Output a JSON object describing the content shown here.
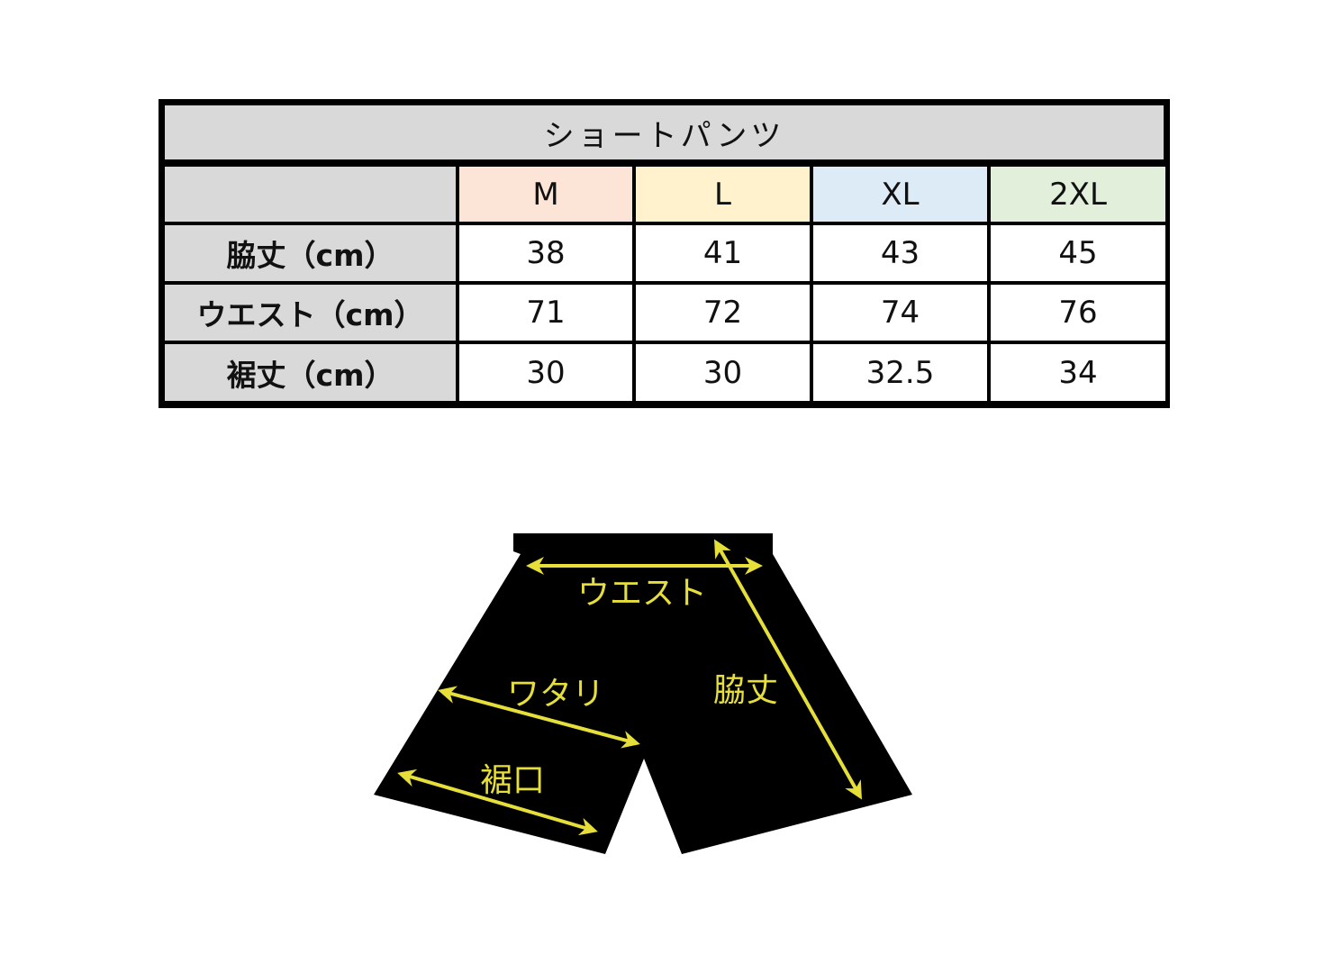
{
  "table": {
    "title": "ショートパンツ",
    "sizes": [
      {
        "label": "M",
        "color": "#fce4d6"
      },
      {
        "label": "L",
        "color": "#fff2cc"
      },
      {
        "label": "XL",
        "color": "#ddebf7"
      },
      {
        "label": "2XL",
        "color": "#e2efda"
      }
    ],
    "rows": [
      {
        "label": "脇丈（cm）",
        "values": [
          "38",
          "41",
          "43",
          "45"
        ]
      },
      {
        "label": "ウエスト（cm）",
        "values": [
          "71",
          "72",
          "74",
          "76"
        ]
      },
      {
        "label": "裾丈（cm）",
        "values": [
          "30",
          "30",
          "32.5",
          "34"
        ]
      }
    ],
    "header_gray": "#d9d9d9"
  },
  "diagram": {
    "labels": {
      "waist": "ウエスト",
      "side_length": "脇丈",
      "thigh": "ワタリ",
      "hem": "裾口"
    },
    "garment_color": "#000000",
    "annotation_color": "#e6df3a"
  }
}
